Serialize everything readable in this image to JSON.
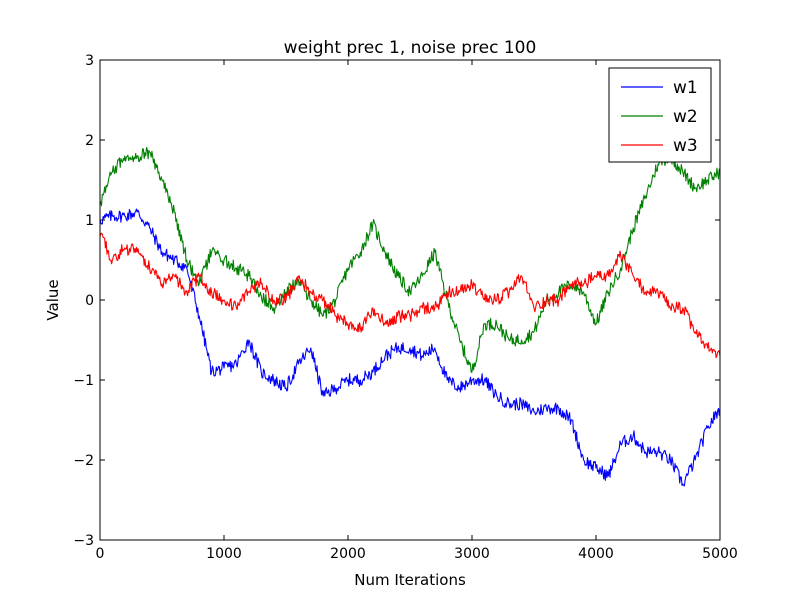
{
  "chart_data": {
    "type": "line",
    "title": "weight prec 1, noise prec 100",
    "xlabel": "Num Iterations",
    "ylabel": "Value",
    "xlim": [
      0,
      5000
    ],
    "ylim": [
      -3,
      3
    ],
    "xticks": [
      0,
      1000,
      2000,
      3000,
      4000,
      5000
    ],
    "yticks": [
      -3,
      -2,
      -1,
      0,
      1,
      2,
      3
    ],
    "xtick_labels": [
      "0",
      "1000",
      "2000",
      "3000",
      "4000",
      "5000"
    ],
    "ytick_labels": [
      "−3",
      "−2",
      "−1",
      "0",
      "1",
      "2",
      "3"
    ],
    "grid": false,
    "legend_position": "top-right",
    "x": [
      0,
      100,
      200,
      300,
      400,
      500,
      600,
      700,
      800,
      900,
      1000,
      1100,
      1200,
      1300,
      1400,
      1500,
      1600,
      1700,
      1800,
      1900,
      2000,
      2100,
      2200,
      2300,
      2400,
      2500,
      2600,
      2700,
      2800,
      2900,
      3000,
      3100,
      3200,
      3300,
      3400,
      3500,
      3600,
      3700,
      3800,
      3900,
      4000,
      4100,
      4200,
      4300,
      4400,
      4500,
      4600,
      4700,
      4800,
      4900,
      5000
    ],
    "series": [
      {
        "name": "w1",
        "color": "#0000ff",
        "values": [
          1.0,
          1.05,
          1.05,
          1.1,
          0.9,
          0.6,
          0.5,
          0.4,
          -0.2,
          -0.9,
          -0.85,
          -0.8,
          -0.5,
          -0.9,
          -1.0,
          -1.1,
          -0.8,
          -0.6,
          -1.2,
          -1.1,
          -1.0,
          -1.0,
          -0.9,
          -0.7,
          -0.6,
          -0.6,
          -0.7,
          -0.6,
          -1.0,
          -1.1,
          -1.0,
          -1.0,
          -1.2,
          -1.3,
          -1.3,
          -1.4,
          -1.35,
          -1.35,
          -1.5,
          -2.0,
          -2.1,
          -2.2,
          -1.8,
          -1.7,
          -1.9,
          -1.9,
          -2.0,
          -2.3,
          -2.0,
          -1.6,
          -1.35
        ]
      },
      {
        "name": "w2",
        "color": "#008000",
        "values": [
          1.2,
          1.6,
          1.8,
          1.8,
          1.85,
          1.5,
          1.1,
          0.5,
          0.2,
          0.6,
          0.5,
          0.4,
          0.3,
          0.05,
          -0.1,
          0.1,
          0.25,
          0.0,
          -0.2,
          0.0,
          0.4,
          0.6,
          0.95,
          0.6,
          0.3,
          0.1,
          0.3,
          0.6,
          0.0,
          -0.5,
          -0.9,
          -0.3,
          -0.3,
          -0.5,
          -0.5,
          -0.4,
          0.0,
          0.1,
          0.2,
          0.1,
          -0.3,
          0.1,
          0.4,
          0.9,
          1.3,
          1.7,
          1.8,
          1.6,
          1.4,
          1.5,
          1.6
        ]
      },
      {
        "name": "w3",
        "color": "#ff0000",
        "values": [
          0.8,
          0.5,
          0.65,
          0.6,
          0.4,
          0.2,
          0.3,
          0.1,
          0.3,
          0.1,
          0.0,
          -0.1,
          0.1,
          0.2,
          0.0,
          0.0,
          0.3,
          0.1,
          0.0,
          -0.2,
          -0.3,
          -0.35,
          -0.1,
          -0.3,
          -0.2,
          -0.2,
          -0.1,
          -0.1,
          0.1,
          0.1,
          0.2,
          0.0,
          0.0,
          0.1,
          0.3,
          -0.1,
          0.0,
          0.0,
          0.2,
          0.2,
          0.3,
          0.3,
          0.55,
          0.3,
          0.1,
          0.1,
          -0.1,
          -0.1,
          -0.4,
          -0.6,
          -0.7
        ]
      }
    ]
  }
}
